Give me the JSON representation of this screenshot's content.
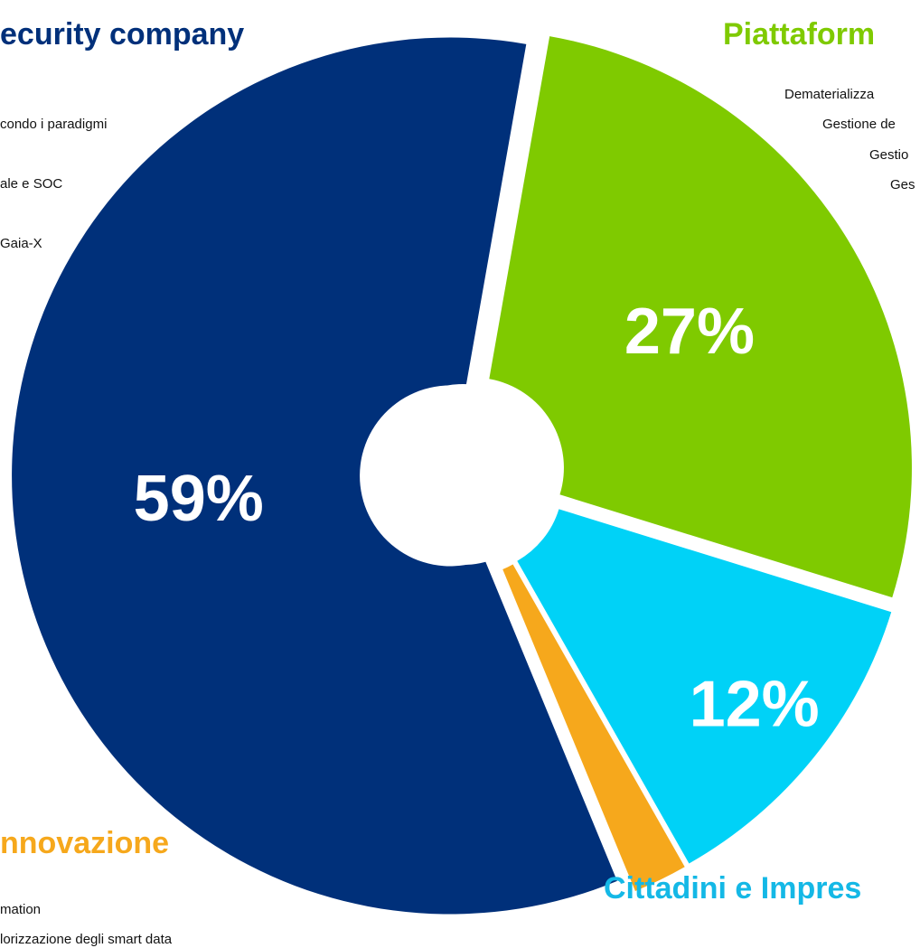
{
  "chart_data": {
    "type": "pie",
    "categories": [
      "Piattaform",
      "Cittadini e Impres",
      "nnovazione",
      "ecurity company"
    ],
    "values": [
      27,
      12,
      2,
      59
    ],
    "value_labels": [
      "27%",
      "12%",
      null,
      "59%"
    ],
    "colors": [
      "#7fca00",
      "#00d2f7",
      "#f6a81c",
      "#00307a"
    ],
    "label_colors": [
      "#7fca00",
      "#14b8e6",
      "#f6a81c",
      "#00307a"
    ],
    "descriptions": [
      [
        "Dematerializza",
        "Gestione de",
        "Gestio",
        "Ges"
      ],
      [],
      [
        "mation",
        "lorizzazione degli smart data"
      ],
      [
        "condo i paradigmi",
        "ale e SOC",
        "Gaia-X"
      ]
    ]
  }
}
